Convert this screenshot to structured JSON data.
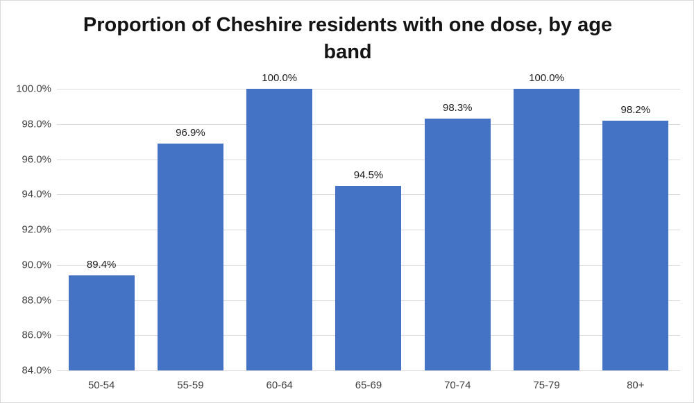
{
  "chart_data": {
    "type": "bar",
    "title": "Proportion of Cheshire residents with one dose, by age band",
    "categories": [
      "50-54",
      "55-59",
      "60-64",
      "65-69",
      "70-74",
      "75-79",
      "80+"
    ],
    "values": [
      89.4,
      96.9,
      100.0,
      94.5,
      98.3,
      100.0,
      98.2
    ],
    "value_labels": [
      "89.4%",
      "96.9%",
      "100.0%",
      "94.5%",
      "98.3%",
      "100.0%",
      "98.2%"
    ],
    "xlabel": "",
    "ylabel": "",
    "ylim": [
      84,
      100
    ],
    "ytick_step": 2,
    "yticks_top_to_bottom": [
      "100.0%",
      "98.0%",
      "96.0%",
      "94.0%",
      "92.0%",
      "90.0%",
      "88.0%",
      "86.0%",
      "84.0%"
    ],
    "grid": true,
    "legend": false,
    "bar_color": "#4472C4",
    "gridline_color": "#d9d9d9",
    "axis_text_color": "#404040",
    "label_text_color": "#1a1a1a"
  }
}
